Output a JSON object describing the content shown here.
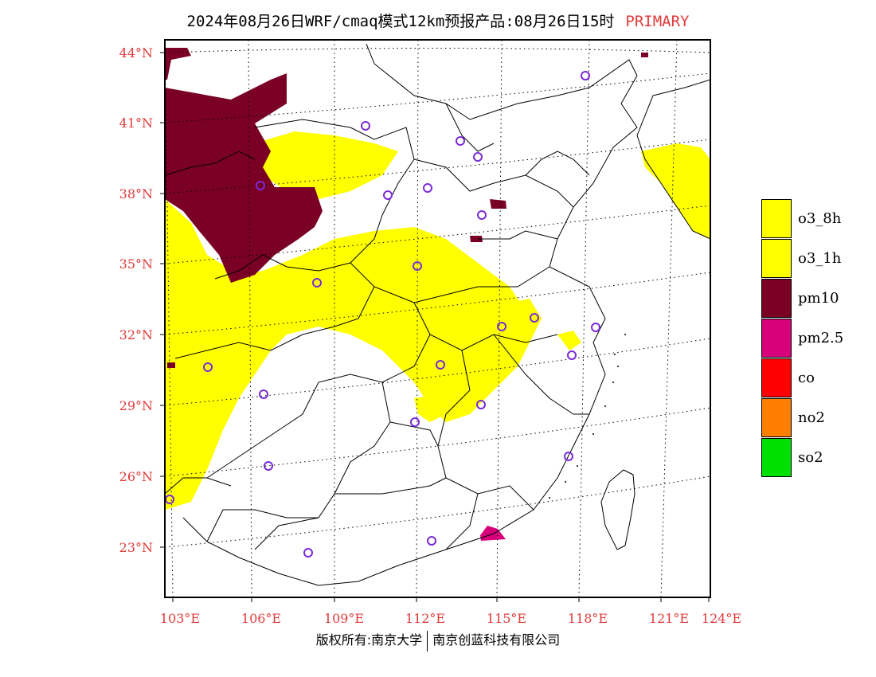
{
  "header": {
    "title": "2024年08月26日WRF/cmaq模式12km预报产品:08月26日15时",
    "tag": "PRIMARY"
  },
  "map": {
    "lat_labels": [
      "44°N",
      "41°N",
      "38°N",
      "35°N",
      "32°N",
      "29°N",
      "26°N",
      "23°N"
    ],
    "lon_labels": [
      "103°E",
      "106°E",
      "109°E",
      "112°E",
      "115°E",
      "118°E",
      "121°E",
      "124°E"
    ]
  },
  "legend": {
    "items": [
      {
        "label": "o3_8h",
        "color": "#ffff00"
      },
      {
        "label": "o3_1h",
        "color": "#ffff00"
      },
      {
        "label": "pm10",
        "color": "#7a0026"
      },
      {
        "label": "pm2.5",
        "color": "#d6007a"
      },
      {
        "label": "co",
        "color": "#ff0000"
      },
      {
        "label": "no2",
        "color": "#ff7f00"
      },
      {
        "label": "so2",
        "color": "#00e000"
      }
    ]
  },
  "footer": {
    "left": "版权所有:南京大学",
    "right": "南京创蓝科技有限公司"
  },
  "colors": {
    "label_red": "#e23a3a",
    "o3": "#ffff00",
    "pm10": "#7a0026",
    "pm25": "#d6007a",
    "station_circle": "#7a2bd6"
  }
}
